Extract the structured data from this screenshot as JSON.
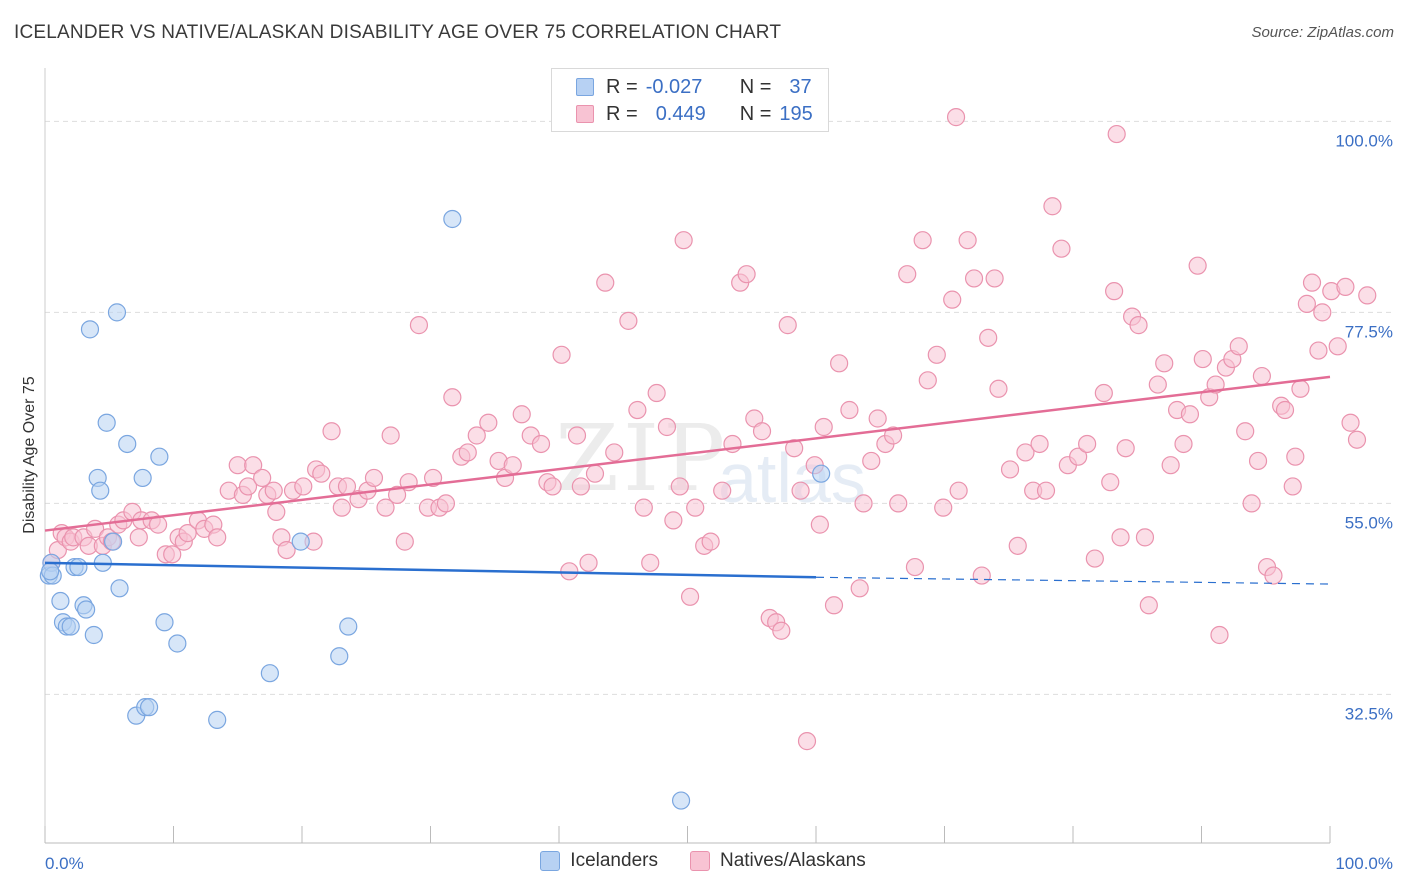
{
  "title": "ICELANDER VS NATIVE/ALASKAN DISABILITY AGE OVER 75 CORRELATION CHART",
  "source": "Source: ZipAtlas.com",
  "watermark": {
    "zip": "ZIP",
    "atlas": "atlas"
  },
  "legend_top": [
    {
      "r_label": "R =",
      "r_value": "-0.027",
      "n_label": "N =",
      "n_value": "37"
    },
    {
      "r_label": "R =",
      "r_value": "0.449",
      "n_label": "N =",
      "n_value": "195"
    }
  ],
  "colors": {
    "icelander_fill": "#b7d1f3",
    "icelander_stroke": "#7aa6e0",
    "icelander_line": "#2a6fcf",
    "native_fill": "#f8c3d3",
    "native_stroke": "#ea93ae",
    "native_line": "#e36d96",
    "grid": "#dddddd",
    "tick_label": "#3b6fc4"
  },
  "chart_data": {
    "type": "scatter",
    "ylabel": "Disability Age Over 75",
    "xlim": [
      0,
      100
    ],
    "ylim": [
      15,
      102
    ],
    "x_tick_labels": [
      "0.0%",
      "100.0%"
    ],
    "y_ticks": [
      {
        "value": 100,
        "label": "100.0%"
      },
      {
        "value": 77.5,
        "label": "77.5%"
      },
      {
        "value": 55,
        "label": "55.0%"
      },
      {
        "value": 32.5,
        "label": "32.5%"
      }
    ],
    "grid": "horizontal dashed",
    "legend": "bottom-center",
    "series": [
      {
        "name": "Icelanders",
        "points": [
          [
            0.3,
            46.5
          ],
          [
            0.5,
            48
          ],
          [
            0.6,
            46.5
          ],
          [
            1.2,
            43.5
          ],
          [
            1.4,
            41
          ],
          [
            1.7,
            40.5
          ],
          [
            2,
            40.5
          ],
          [
            2.3,
            47.5
          ],
          [
            2.6,
            47.5
          ],
          [
            3,
            43
          ],
          [
            3.2,
            42.5
          ],
          [
            3.5,
            75.5
          ],
          [
            3.8,
            39.5
          ],
          [
            4.1,
            58
          ],
          [
            4.3,
            56.5
          ],
          [
            4.5,
            48
          ],
          [
            4.8,
            64.5
          ],
          [
            5.3,
            50.5
          ],
          [
            5.6,
            77.5
          ],
          [
            5.8,
            45
          ],
          [
            6.4,
            62
          ],
          [
            7.1,
            30
          ],
          [
            7.6,
            58
          ],
          [
            7.8,
            31
          ],
          [
            8.1,
            31
          ],
          [
            8.9,
            60.5
          ],
          [
            9.3,
            41
          ],
          [
            10.3,
            38.5
          ],
          [
            13.4,
            29.5
          ],
          [
            17.5,
            35
          ],
          [
            19.9,
            50.5
          ],
          [
            22.9,
            37
          ],
          [
            23.6,
            40.5
          ],
          [
            31.7,
            88.5
          ],
          [
            49.5,
            20
          ],
          [
            60.4,
            58.5
          ],
          [
            0.4,
            47
          ]
        ],
        "trend": {
          "x0": 0,
          "y0": 48,
          "x1": 60,
          "y1": 46.3,
          "dash_to_x": 100,
          "dash_to_y": 45.5
        }
      },
      {
        "name": "Natives/Alaskans",
        "points": [
          [
            0.5,
            48
          ],
          [
            1,
            49.5
          ],
          [
            1.3,
            51.5
          ],
          [
            1.6,
            51
          ],
          [
            2,
            50.5
          ],
          [
            2.2,
            51
          ],
          [
            3,
            51
          ],
          [
            3.4,
            50
          ],
          [
            3.9,
            52
          ],
          [
            4.5,
            50
          ],
          [
            4.9,
            51
          ],
          [
            5.2,
            50.5
          ],
          [
            5.7,
            52.5
          ],
          [
            6.1,
            53
          ],
          [
            6.8,
            54
          ],
          [
            7.3,
            51
          ],
          [
            7.5,
            53
          ],
          [
            8.3,
            53
          ],
          [
            8.8,
            52.5
          ],
          [
            9.4,
            49
          ],
          [
            9.9,
            49
          ],
          [
            10.4,
            51
          ],
          [
            10.8,
            50.5
          ],
          [
            11.1,
            51.5
          ],
          [
            11.9,
            53
          ],
          [
            12.4,
            52
          ],
          [
            13.1,
            52.5
          ],
          [
            13.4,
            51
          ],
          [
            14.3,
            56.5
          ],
          [
            15,
            59.5
          ],
          [
            15.4,
            56
          ],
          [
            15.8,
            57
          ],
          [
            16.2,
            59.5
          ],
          [
            16.9,
            58
          ],
          [
            17.3,
            56
          ],
          [
            17.8,
            56.5
          ],
          [
            18,
            54
          ],
          [
            18.4,
            51
          ],
          [
            18.8,
            49.5
          ],
          [
            19.3,
            56.5
          ],
          [
            20.1,
            57
          ],
          [
            20.9,
            50.5
          ],
          [
            21.1,
            59
          ],
          [
            21.5,
            58.5
          ],
          [
            22.3,
            63.5
          ],
          [
            22.8,
            57
          ],
          [
            23.1,
            54.5
          ],
          [
            23.5,
            57
          ],
          [
            24.4,
            55.5
          ],
          [
            25.1,
            56.5
          ],
          [
            25.6,
            58
          ],
          [
            26.5,
            54.5
          ],
          [
            26.9,
            63
          ],
          [
            27.4,
            56
          ],
          [
            28,
            50.5
          ],
          [
            28.3,
            57.5
          ],
          [
            29.1,
            76
          ],
          [
            29.8,
            54.5
          ],
          [
            30.2,
            58
          ],
          [
            30.7,
            54.5
          ],
          [
            31.2,
            55
          ],
          [
            31.7,
            67.5
          ],
          [
            32.4,
            60.5
          ],
          [
            32.9,
            61
          ],
          [
            33.6,
            63
          ],
          [
            34.5,
            64.5
          ],
          [
            35.3,
            60
          ],
          [
            35.8,
            58
          ],
          [
            36.4,
            59.5
          ],
          [
            37.1,
            65.5
          ],
          [
            37.8,
            63
          ],
          [
            38.6,
            62
          ],
          [
            39.1,
            57.5
          ],
          [
            39.5,
            57
          ],
          [
            40.2,
            72.5
          ],
          [
            40.8,
            47
          ],
          [
            41.4,
            63
          ],
          [
            41.7,
            57
          ],
          [
            42.3,
            48
          ],
          [
            42.8,
            58.5
          ],
          [
            43.6,
            81
          ],
          [
            44.3,
            61
          ],
          [
            45.4,
            76.5
          ],
          [
            46.1,
            66
          ],
          [
            46.6,
            54.5
          ],
          [
            47.1,
            48
          ],
          [
            47.6,
            68
          ],
          [
            48.4,
            64
          ],
          [
            48.9,
            53
          ],
          [
            49.4,
            57
          ],
          [
            49.7,
            86
          ],
          [
            50.2,
            44
          ],
          [
            50.6,
            54.5
          ],
          [
            51.3,
            50
          ],
          [
            51.8,
            50.5
          ],
          [
            52.7,
            56.5
          ],
          [
            53.5,
            62
          ],
          [
            54.1,
            81
          ],
          [
            54.6,
            82
          ],
          [
            55.2,
            65
          ],
          [
            55.8,
            63.5
          ],
          [
            56.4,
            41.5
          ],
          [
            56.9,
            41
          ],
          [
            57.3,
            40
          ],
          [
            57.8,
            76
          ],
          [
            58.3,
            61.5
          ],
          [
            58.8,
            56.5
          ],
          [
            59.3,
            27
          ],
          [
            59.9,
            59.5
          ],
          [
            60.3,
            52.5
          ],
          [
            60.6,
            64
          ],
          [
            61.4,
            43
          ],
          [
            61.8,
            71.5
          ],
          [
            62.6,
            66
          ],
          [
            63.4,
            45
          ],
          [
            63.7,
            55
          ],
          [
            64.3,
            60
          ],
          [
            64.8,
            65
          ],
          [
            65.4,
            62
          ],
          [
            66,
            63
          ],
          [
            66.4,
            55
          ],
          [
            67.1,
            82
          ],
          [
            67.7,
            47.5
          ],
          [
            68.3,
            86
          ],
          [
            68.7,
            69.5
          ],
          [
            69.4,
            72.5
          ],
          [
            69.9,
            54.5
          ],
          [
            70.6,
            79
          ],
          [
            71.1,
            56.5
          ],
          [
            71.8,
            86
          ],
          [
            72.3,
            81.5
          ],
          [
            72.9,
            46.5
          ],
          [
            73.4,
            74.5
          ],
          [
            73.9,
            81.5
          ],
          [
            74.2,
            68.5
          ],
          [
            75.1,
            59
          ],
          [
            75.7,
            50
          ],
          [
            76.3,
            61
          ],
          [
            76.9,
            56.5
          ],
          [
            77.4,
            62
          ],
          [
            77.9,
            56.5
          ],
          [
            78.4,
            90
          ],
          [
            79.1,
            85
          ],
          [
            79.6,
            59.5
          ],
          [
            80.4,
            60.5
          ],
          [
            81.1,
            62
          ],
          [
            81.7,
            48.5
          ],
          [
            82.4,
            68
          ],
          [
            82.9,
            57.5
          ],
          [
            83.2,
            80
          ],
          [
            83.7,
            51
          ],
          [
            84.1,
            61.5
          ],
          [
            84.6,
            77
          ],
          [
            85.1,
            76
          ],
          [
            85.6,
            51
          ],
          [
            85.9,
            43
          ],
          [
            86.6,
            69
          ],
          [
            87.1,
            71.5
          ],
          [
            87.6,
            59.5
          ],
          [
            88.1,
            66
          ],
          [
            88.6,
            62
          ],
          [
            89.1,
            65.5
          ],
          [
            89.7,
            83
          ],
          [
            90.1,
            72
          ],
          [
            90.6,
            67.5
          ],
          [
            91.1,
            69
          ],
          [
            91.4,
            39.5
          ],
          [
            91.9,
            71
          ],
          [
            92.4,
            72
          ],
          [
            92.9,
            73.5
          ],
          [
            93.4,
            63.5
          ],
          [
            93.9,
            55
          ],
          [
            94.4,
            60
          ],
          [
            94.7,
            70
          ],
          [
            95.1,
            47.5
          ],
          [
            95.6,
            46.5
          ],
          [
            96.2,
            66.5
          ],
          [
            96.5,
            66
          ],
          [
            97.1,
            57
          ],
          [
            97.3,
            60.5
          ],
          [
            97.7,
            68.5
          ],
          [
            98.2,
            78.5
          ],
          [
            98.6,
            81
          ],
          [
            99.1,
            73
          ],
          [
            99.4,
            77.5
          ],
          [
            100.1,
            80
          ],
          [
            100.6,
            73.5
          ],
          [
            101.2,
            80.5
          ],
          [
            101.6,
            64.5
          ],
          [
            102.1,
            62.5
          ],
          [
            102.9,
            79.5
          ],
          [
            70.9,
            100.5
          ],
          [
            83.4,
            98.5
          ]
        ],
        "trend": {
          "x0": 0,
          "y0": 51.8,
          "x1": 100,
          "y1": 69.9
        }
      }
    ]
  },
  "bottom_legend": [
    {
      "label": "Icelanders"
    },
    {
      "label": "Natives/Alaskans"
    }
  ]
}
